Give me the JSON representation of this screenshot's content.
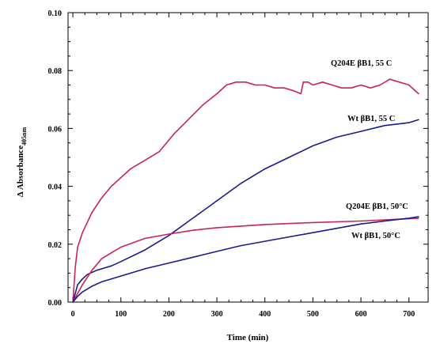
{
  "chart_data": {
    "type": "line",
    "xlabel": "Time (min)",
    "ylabel": "Δ Absorbance",
    "ylabel_sub": "405nm",
    "xlim": [
      -10,
      740
    ],
    "ylim": [
      0,
      0.1
    ],
    "x_ticks": [
      0,
      100,
      200,
      300,
      400,
      500,
      600,
      700
    ],
    "y_ticks": [
      0.0,
      0.02,
      0.04,
      0.06,
      0.08,
      0.1
    ],
    "y_tick_labels": [
      "0.00",
      "0.02",
      "0.04",
      "0.06",
      "0.08",
      "0.10"
    ],
    "grid": false,
    "series": [
      {
        "name": "Q204E βB1, 55 C",
        "color": "#cc2255",
        "x": [
          0,
          5,
          10,
          20,
          40,
          60,
          80,
          100,
          120,
          150,
          180,
          210,
          240,
          270,
          300,
          320,
          340,
          360,
          380,
          400,
          420,
          440,
          460,
          475,
          480,
          490,
          500,
          520,
          540,
          560,
          580,
          600,
          620,
          640,
          660,
          680,
          700,
          720
        ],
        "y": [
          0.0,
          0.012,
          0.019,
          0.024,
          0.031,
          0.036,
          0.04,
          0.043,
          0.046,
          0.049,
          0.052,
          0.058,
          0.063,
          0.068,
          0.072,
          0.075,
          0.076,
          0.076,
          0.075,
          0.075,
          0.074,
          0.074,
          0.073,
          0.072,
          0.076,
          0.076,
          0.075,
          0.076,
          0.075,
          0.074,
          0.074,
          0.075,
          0.074,
          0.075,
          0.077,
          0.076,
          0.075,
          0.072
        ]
      },
      {
        "name": "Wt βB1, 55 C",
        "color": "#1a1a8c",
        "x": [
          0,
          10,
          20,
          30,
          50,
          80,
          100,
          150,
          200,
          250,
          300,
          350,
          400,
          450,
          500,
          550,
          600,
          650,
          700,
          720
        ],
        "y": [
          0.0,
          0.006,
          0.008,
          0.0095,
          0.011,
          0.0125,
          0.014,
          0.018,
          0.023,
          0.029,
          0.035,
          0.041,
          0.046,
          0.05,
          0.054,
          0.057,
          0.059,
          0.061,
          0.062,
          0.063
        ]
      },
      {
        "name": "Q204E βB1, 50 C",
        "color": "#cc2255",
        "x": [
          0,
          20,
          40,
          60,
          80,
          100,
          150,
          200,
          250,
          300,
          400,
          500,
          600,
          700,
          720
        ],
        "y": [
          0.0,
          0.006,
          0.011,
          0.015,
          0.017,
          0.019,
          0.022,
          0.0235,
          0.0248,
          0.0257,
          0.0268,
          0.0275,
          0.028,
          0.0288,
          0.029
        ]
      },
      {
        "name": "Wt βB1, 50 C",
        "color": "#1a1a8c",
        "x": [
          0,
          10,
          20,
          40,
          60,
          100,
          150,
          200,
          250,
          300,
          350,
          400,
          450,
          500,
          550,
          600,
          650,
          700,
          720
        ],
        "y": [
          0.0,
          0.002,
          0.0035,
          0.0055,
          0.007,
          0.009,
          0.0115,
          0.0135,
          0.0155,
          0.0175,
          0.0195,
          0.021,
          0.0225,
          0.024,
          0.0255,
          0.027,
          0.028,
          0.029,
          0.0295
        ]
      }
    ]
  },
  "annotations": [
    {
      "text": "Q204E βB1, 55 C",
      "series_index": 0
    },
    {
      "text": "Wt βB1, 55 C",
      "series_index": 1
    },
    {
      "text": "Q204E βB1, 50°C",
      "series_index": 2
    },
    {
      "text": "Wt βB1, 50°C",
      "series_index": 3
    }
  ]
}
